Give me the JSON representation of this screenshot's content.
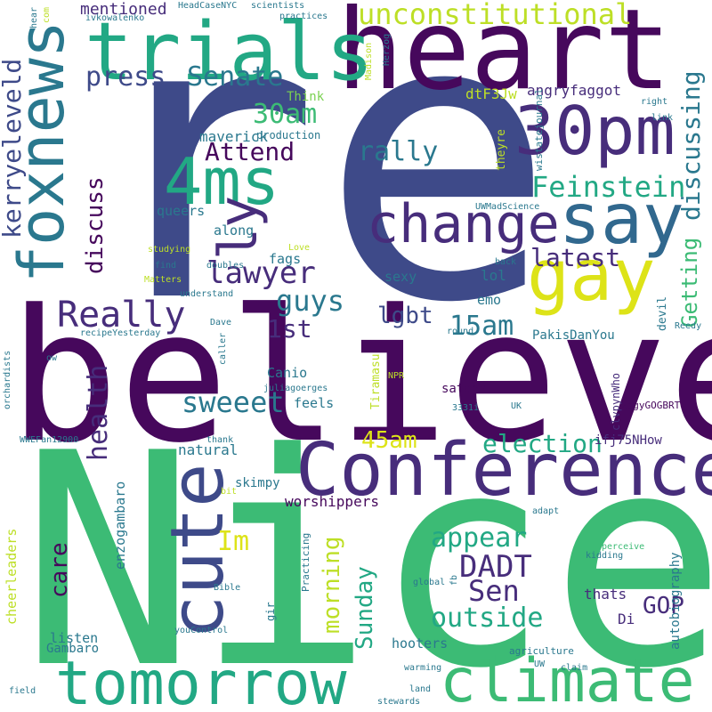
{
  "colors": {
    "indigo": "#3e4a89",
    "purple": "#46085c",
    "deep_purple": "#472d7b",
    "teal": "#2a788e",
    "blue_teal": "#31688e",
    "green": "#3cbb75",
    "mint": "#22a884",
    "yellow_green": "#bddf26",
    "yellow": "#dde318",
    "lime": "#7ad151"
  },
  "words": {
    "re": "re",
    "believe": "believe",
    "nice": "Nice",
    "heart": "heart",
    "trials": "trials",
    "foxnews": "foxnews",
    "t30pm": "30pm",
    "t4ms": "4ms",
    "change": "change",
    "say": "say",
    "gay": "gay",
    "conference": "Conference",
    "cute": "cute",
    "tomorrow": "tomorrow",
    "climate": "climate",
    "unconstitutional": "unconstitutional",
    "press": "press",
    "senate": "Senate",
    "t30am": "30am",
    "attend": "Attend",
    "rally": "rally",
    "feinstein": "Feinstein",
    "lawyer": "lawyer",
    "latest": "latest",
    "really": "Really",
    "guys": "guys",
    "lgbt": "lgbt",
    "first": "1st",
    "t15am": "15am",
    "sweeet": "sweeet",
    "t45am": "45am",
    "election": "election",
    "ly": "ly",
    "kerryeleveld": "kerryeleveld",
    "discuss": "discuss",
    "health": "health",
    "discussing": "discussing",
    "getting": "Getting",
    "im": "Im",
    "dadt": "DADT",
    "appear": "appear",
    "sen": "Sen",
    "outside": "outside",
    "gop": "GOP",
    "sunday": "Sunday",
    "morning": "morning",
    "care": "care",
    "mentioned": "mentioned",
    "angryfaggot": "angryfaggot",
    "dtf3jw": "dtF3Jw",
    "think": "Think",
    "maverick": "maverick",
    "production": "production",
    "queers": "queers",
    "along": "along",
    "fags": "fags",
    "lol": "lol",
    "sexy": "sexy",
    "emo": "emo",
    "pakisdanyou": "PakisDanYou",
    "canio": "Canio",
    "feels": "feels",
    "satans": "satans",
    "natural": "natural",
    "skimpy": "skimpy",
    "worshippers": "worshippers",
    "ifj75nhow": "ifj75NHow",
    "enzogambaro": "enzogambaro",
    "cheerleaders": "cheerleaders",
    "listen": "listen",
    "gambaro": "Gambaro",
    "hooters": "hooters",
    "thats": "thats",
    "di": "Di",
    "autobiography": "autobiography",
    "theyre": "theyre",
    "wistatejournal": "wistatejournal",
    "uwmadscience": "UWMadScience",
    "devil": "devil",
    "tiramasu": "Tiramasu",
    "clvpynwho": "clvpynWho",
    "zogygogbrt": "zogyGOGBRT",
    "practicing": "Practicing",
    "agriculture": "agriculture",
    "global": "global",
    "warming": "warming",
    "land": "land",
    "stewards": "stewards",
    "claim": "claim",
    "uw": "UW",
    "kidding": "kidding",
    "perceive": "perceive",
    "adapt": "adapt",
    "field": "field",
    "wwefan": "WWEFan12900",
    "orchardists": "orchardists",
    "ow": "ow",
    "recipe": "recipeYesterday",
    "dave": "Dave",
    "caller": "caller",
    "juliagoerges": "juliagoerges",
    "npr": "NPR",
    "uk": "UK",
    "n3331i": "3331i",
    "thank": "thank",
    "bit": "bit",
    "bible": "Bible",
    "youcontrol": "youControl",
    "gir": "gir",
    "fb": "fb",
    "studying": "studying",
    "find": "find",
    "doubles": "doubles",
    "matters": "Matters",
    "understand": "understand",
    "love": "Love",
    "back": "back",
    "round": "round",
    "reedy": "Reedy",
    "link": "link",
    "right": "right",
    "madison": "Madison",
    "herzog": "Herzog",
    "ivkowalenko": "ivkowalenko",
    "headcase": "HeadCaseNYC",
    "scientists": "scientists",
    "practices": "practices",
    "hear": "hear",
    "com": "com"
  }
}
